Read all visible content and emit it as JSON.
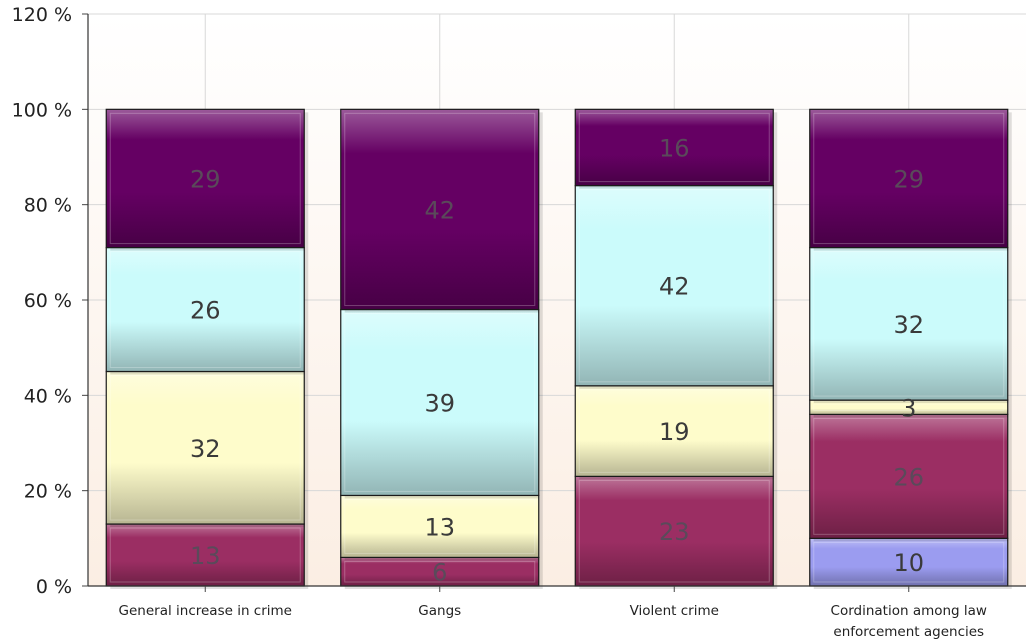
{
  "chart_data": {
    "type": "bar",
    "stacked": true,
    "normalized": true,
    "categories": [
      "General increase in crime",
      "Gangs",
      "Violent crime",
      "Cordination among law enforcement agencies"
    ],
    "series": [
      {
        "values": [
          0,
          0,
          0,
          10
        ],
        "color": "#9b9cf0"
      },
      {
        "values": [
          13,
          6,
          23,
          26
        ],
        "color": "#9b2e63"
      },
      {
        "values": [
          32,
          13,
          19,
          3
        ],
        "color": "#fefccb"
      },
      {
        "values": [
          26,
          39,
          42,
          32
        ],
        "color": "#cbfbfb"
      },
      {
        "values": [
          29,
          42,
          16,
          29
        ],
        "color": "#650063"
      }
    ],
    "yticks": [
      "0 %",
      "20 %",
      "40 %",
      "60 %",
      "80 %",
      "100 %",
      "120 %"
    ],
    "ylim": [
      0,
      120
    ],
    "grid": true,
    "legend": "none"
  }
}
